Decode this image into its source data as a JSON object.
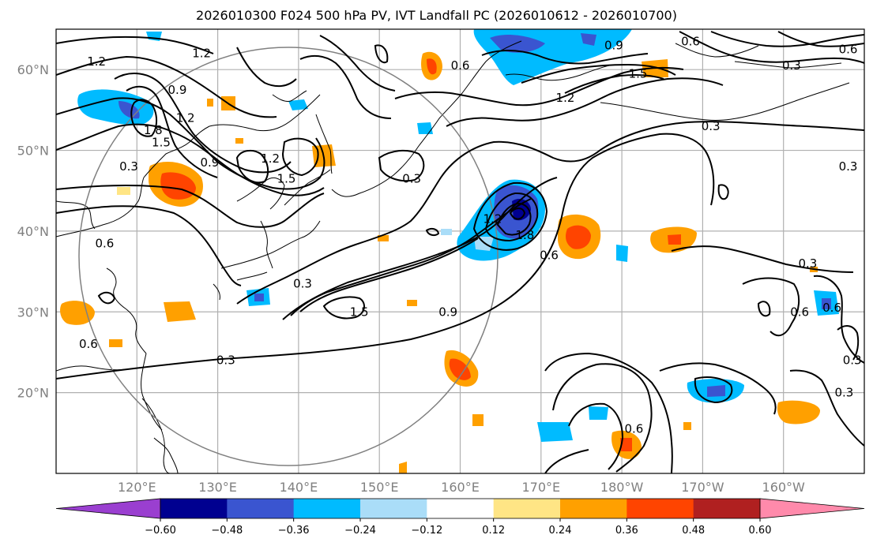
{
  "title": "2026010300 F024 500 hPa PV, IVT Landfall PC (2026010612 - 2026010700)",
  "map": {
    "lon_range": [
      110,
      210
    ],
    "lat_range": [
      10,
      65
    ],
    "lat_ticks": [
      {
        "value": 20,
        "label": "20°N"
      },
      {
        "value": 30,
        "label": "30°N"
      },
      {
        "value": 40,
        "label": "40°N"
      },
      {
        "value": 50,
        "label": "50°N"
      },
      {
        "value": 60,
        "label": "60°N"
      }
    ],
    "lon_ticks": [
      {
        "value": 120,
        "label": "120°E"
      },
      {
        "value": 130,
        "label": "130°E"
      },
      {
        "value": 140,
        "label": "140°E"
      },
      {
        "value": 150,
        "label": "150°E"
      },
      {
        "value": 160,
        "label": "160°E"
      },
      {
        "value": 170,
        "label": "170°E"
      },
      {
        "value": 180,
        "label": "180°W"
      },
      {
        "value": 190,
        "label": "170°W"
      },
      {
        "value": 200,
        "label": "160°W"
      }
    ],
    "grid": true,
    "contour_labels": [
      {
        "text": "1.2",
        "lon": 115,
        "lat": 61
      },
      {
        "text": "1.2",
        "lon": 128,
        "lat": 62
      },
      {
        "text": "0.9",
        "lon": 125,
        "lat": 57.5
      },
      {
        "text": "1.2",
        "lon": 126,
        "lat": 54
      },
      {
        "text": "1.8",
        "lon": 122,
        "lat": 52.5
      },
      {
        "text": "1.5",
        "lon": 123,
        "lat": 51
      },
      {
        "text": "0.9",
        "lon": 129,
        "lat": 48.5
      },
      {
        "text": "1.2",
        "lon": 136.5,
        "lat": 49
      },
      {
        "text": "1.5",
        "lon": 138.5,
        "lat": 46.5
      },
      {
        "text": "0.3",
        "lon": 119,
        "lat": 48
      },
      {
        "text": "0.6",
        "lon": 116,
        "lat": 38.5
      },
      {
        "text": "0.3",
        "lon": 140.5,
        "lat": 33.5
      },
      {
        "text": "0.6",
        "lon": 114,
        "lat": 26
      },
      {
        "text": "0.3",
        "lon": 131,
        "lat": 24
      },
      {
        "text": "1.5",
        "lon": 147.5,
        "lat": 30
      },
      {
        "text": "0.9",
        "lon": 158.5,
        "lat": 30
      },
      {
        "text": "0.3",
        "lon": 154,
        "lat": 46.5
      },
      {
        "text": "1.2",
        "lon": 164,
        "lat": 41.5
      },
      {
        "text": "1.8",
        "lon": 168,
        "lat": 39.5
      },
      {
        "text": "0.6",
        "lon": 171,
        "lat": 37
      },
      {
        "text": "1.5",
        "lon": 182,
        "lat": 59.5
      },
      {
        "text": "1.2",
        "lon": 173,
        "lat": 56.5
      },
      {
        "text": "0.3",
        "lon": 191,
        "lat": 53
      },
      {
        "text": "0.6",
        "lon": 160,
        "lat": 60.5
      },
      {
        "text": "0.9",
        "lon": 179,
        "lat": 63
      },
      {
        "text": "0.6",
        "lon": 188.5,
        "lat": 63.5
      },
      {
        "text": "0.3",
        "lon": 201,
        "lat": 60.5
      },
      {
        "text": "0.6",
        "lon": 208,
        "lat": 62.5
      },
      {
        "text": "0.3",
        "lon": 208,
        "lat": 48
      },
      {
        "text": "0.3",
        "lon": 203,
        "lat": 36
      },
      {
        "text": "0.6",
        "lon": 202,
        "lat": 30
      },
      {
        "text": "0.6",
        "lon": 206,
        "lat": 30.5
      },
      {
        "text": "0.3",
        "lon": 208.5,
        "lat": 24
      },
      {
        "text": "0.3",
        "lon": 207.5,
        "lat": 20
      },
      {
        "text": "0.6",
        "lon": 181.5,
        "lat": 15.5
      }
    ]
  },
  "colorbar": {
    "ticks": [
      "−0.60",
      "−0.48",
      "−0.36",
      "−0.24",
      "−0.12",
      "0.12",
      "0.24",
      "0.36",
      "0.48",
      "0.60"
    ],
    "under_color": "#9a3fd0",
    "over_color": "#ff8aab",
    "colors": [
      "#000090",
      "#3a55d0",
      "#00bbff",
      "#aaddf8",
      "#ffffff",
      "#ffe585",
      "#ffa000",
      "#ff4400",
      "#b02020"
    ]
  }
}
